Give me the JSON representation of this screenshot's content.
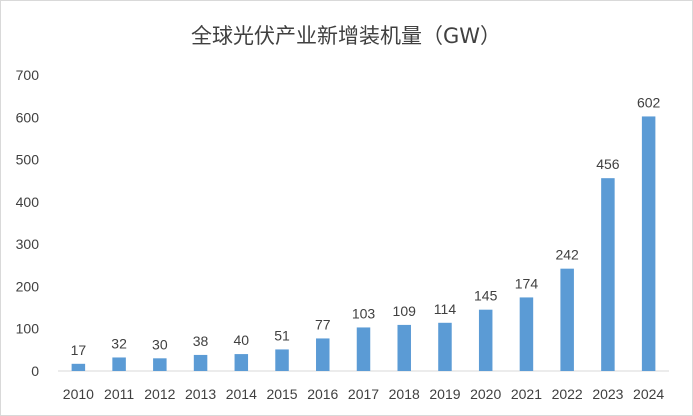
{
  "chart_data": {
    "type": "bar",
    "title": "全球光伏产业新增装机量（GW）",
    "xlabel": "",
    "ylabel": "",
    "categories": [
      "2010",
      "2011",
      "2012",
      "2013",
      "2014",
      "2015",
      "2016",
      "2017",
      "2018",
      "2019",
      "2020",
      "2021",
      "2022",
      "2023",
      "2024"
    ],
    "values": [
      17,
      32,
      30,
      38,
      40,
      51,
      77,
      103,
      109,
      114,
      145,
      174,
      242,
      456,
      602
    ],
    "ylim": [
      0,
      700
    ],
    "yticks": [
      0,
      100,
      200,
      300,
      400,
      500,
      600,
      700
    ],
    "grid": false,
    "legend": "none",
    "bar_color": "#5b9bd5"
  }
}
